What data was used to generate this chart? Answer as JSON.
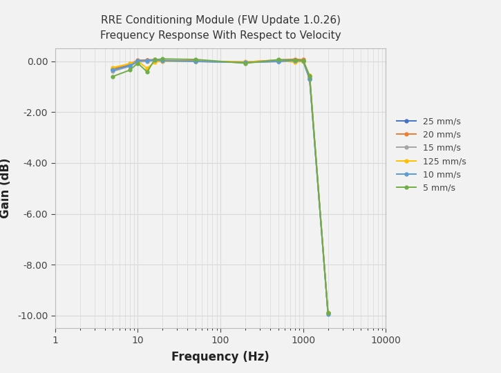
{
  "title_line1": "RRE Conditioning Module (FW Update 1.0.26)",
  "title_line2": "Frequency Response With Respect to Velocity",
  "xlabel": "Frequency (Hz)",
  "ylabel": "Gain (dB)",
  "xlim": [
    1,
    10000
  ],
  "ylim": [
    -10.5,
    0.5
  ],
  "yticks": [
    0.0,
    -2.0,
    -4.0,
    -6.0,
    -8.0,
    -10.0
  ],
  "ytick_labels": [
    "0.00",
    "-2.00",
    "-4.00",
    "-6.00",
    "-8.00",
    "-10.00"
  ],
  "background_color": "#f2f2f2",
  "grid_color": "#d9d9d9",
  "series": [
    {
      "label": "25 mm/s",
      "color": "#4472c4",
      "marker": "o",
      "freq": [
        5,
        8,
        10,
        13,
        16,
        20,
        50,
        200,
        500,
        800,
        1000,
        1200,
        2000
      ],
      "gain": [
        -0.35,
        -0.15,
        0.02,
        0.05,
        0.05,
        0.02,
        0.0,
        -0.05,
        0.0,
        0.05,
        0.02,
        -0.7,
        -9.9
      ]
    },
    {
      "label": "20 mm/s",
      "color": "#ed7d31",
      "marker": "o",
      "freq": [
        5,
        8,
        10,
        13,
        16,
        20,
        50,
        200,
        500,
        800,
        1000,
        1200,
        2000
      ],
      "gain": [
        -0.3,
        -0.1,
        0.04,
        0.05,
        0.06,
        0.03,
        0.01,
        -0.03,
        0.05,
        0.08,
        0.06,
        -0.6,
        -9.9
      ]
    },
    {
      "label": "15 mm/s",
      "color": "#a5a5a5",
      "marker": "o",
      "freq": [
        5,
        8,
        10,
        13,
        16,
        20,
        50,
        200,
        500,
        800,
        1000,
        1200,
        2000
      ],
      "gain": [
        -0.4,
        -0.2,
        -0.03,
        0.0,
        0.02,
        0.01,
        -0.01,
        -0.05,
        -0.02,
        0.0,
        -0.01,
        -0.72,
        -9.9
      ]
    },
    {
      "label": "125 mm/s",
      "color": "#ffc000",
      "marker": "o",
      "freq": [
        5,
        8,
        10,
        13,
        16,
        20,
        50,
        200,
        500,
        800,
        1000,
        1200,
        2000
      ],
      "gain": [
        -0.25,
        -0.1,
        0.0,
        -0.28,
        -0.03,
        0.0,
        -0.01,
        -0.02,
        0.02,
        -0.04,
        -0.01,
        -0.56,
        -9.9
      ]
    },
    {
      "label": "10 mm/s",
      "color": "#5b9bd5",
      "marker": "o",
      "freq": [
        5,
        8,
        10,
        13,
        16,
        20,
        50,
        200,
        500,
        800,
        1000,
        1200,
        2000
      ],
      "gain": [
        -0.35,
        -0.18,
        0.02,
        0.03,
        0.05,
        0.02,
        -0.01,
        -0.05,
        0.0,
        0.02,
        0.01,
        -0.68,
        -9.95
      ]
    },
    {
      "label": "5 mm/s",
      "color": "#70ad47",
      "marker": "o",
      "freq": [
        5,
        8,
        10,
        13,
        16,
        20,
        50,
        200,
        500,
        800,
        1000,
        1200,
        2000
      ],
      "gain": [
        -0.6,
        -0.35,
        -0.08,
        -0.42,
        0.06,
        0.09,
        0.07,
        -0.08,
        0.06,
        0.05,
        0.03,
        -0.58,
        -9.9
      ]
    }
  ]
}
